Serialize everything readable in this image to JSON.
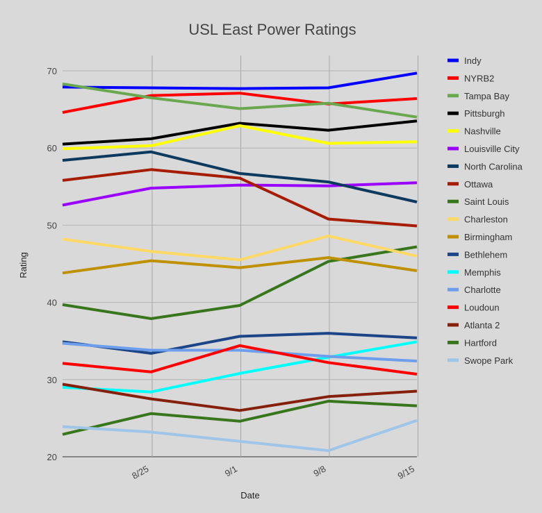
{
  "chart_data": {
    "type": "line",
    "title": "USL East Power Ratings",
    "xlabel": "Date",
    "ylabel": "Rating",
    "ylim": [
      20,
      70
    ],
    "yticks": [
      20,
      30,
      40,
      50,
      60,
      70
    ],
    "xlim": [
      0,
      5
    ],
    "xticks": [
      {
        "label": "8/25",
        "x": 1
      },
      {
        "label": "9/1",
        "x": 2
      },
      {
        "label": "9/8",
        "x": 3
      },
      {
        "label": "9/15",
        "x": 4
      }
    ],
    "x": [
      0,
      1,
      2,
      3,
      4
    ],
    "grid": true,
    "legend_position": "right",
    "series": [
      {
        "name": "Indy",
        "color": "#0000ff",
        "values": [
          67.9,
          67.8,
          67.7,
          67.8,
          69.7
        ]
      },
      {
        "name": "NYRB2",
        "color": "#ff0000",
        "values": [
          64.6,
          66.8,
          67.1,
          65.7,
          66.4
        ]
      },
      {
        "name": "Tampa Bay",
        "color": "#6aa84f",
        "values": [
          68.3,
          66.5,
          65.1,
          65.8,
          64.0
        ]
      },
      {
        "name": "Pittsburgh",
        "color": "#000000",
        "values": [
          60.5,
          61.2,
          63.2,
          62.3,
          63.5
        ]
      },
      {
        "name": "Nashville",
        "color": "#ffff00",
        "values": [
          59.9,
          60.3,
          62.9,
          60.6,
          60.8
        ]
      },
      {
        "name": "Louisville City",
        "color": "#9900ff",
        "values": [
          52.6,
          54.8,
          55.2,
          55.1,
          55.5
        ]
      },
      {
        "name": "North Carolina",
        "color": "#0b3a5e",
        "values": [
          58.4,
          59.5,
          56.7,
          55.6,
          53.0
        ]
      },
      {
        "name": "Ottawa",
        "color": "#a61c00",
        "values": [
          55.8,
          57.2,
          56.1,
          50.8,
          49.9
        ]
      },
      {
        "name": "Saint Louis",
        "color": "#38761d",
        "values": [
          39.7,
          37.9,
          39.6,
          45.3,
          47.2
        ]
      },
      {
        "name": "Charleston",
        "color": "#ffd966",
        "values": [
          48.2,
          46.6,
          45.5,
          48.6,
          46.0
        ]
      },
      {
        "name": "Birmingham",
        "color": "#bf9000",
        "values": [
          43.8,
          45.4,
          44.5,
          45.8,
          44.1
        ]
      },
      {
        "name": "Bethlehem",
        "color": "#1c4587",
        "values": [
          34.9,
          33.4,
          35.6,
          36.0,
          35.4
        ]
      },
      {
        "name": "Memphis",
        "color": "#00ffff",
        "values": [
          29.0,
          28.4,
          30.8,
          32.9,
          34.9
        ]
      },
      {
        "name": "Charlotte",
        "color": "#6d9eeb",
        "values": [
          34.7,
          33.8,
          33.8,
          33.0,
          32.4
        ]
      },
      {
        "name": "Loudoun",
        "color": "#ff0000",
        "values": [
          32.1,
          31.0,
          34.4,
          32.2,
          30.7
        ]
      },
      {
        "name": "Atlanta 2",
        "color": "#85200c",
        "values": [
          29.4,
          27.5,
          26.0,
          27.8,
          28.5
        ]
      },
      {
        "name": "Hartford",
        "color": "#38761d",
        "values": [
          22.9,
          25.6,
          24.6,
          27.2,
          26.6
        ]
      },
      {
        "name": "Swope Park",
        "color": "#9fc5e8",
        "values": [
          23.9,
          23.2,
          22.0,
          20.8,
          24.7
        ]
      }
    ]
  }
}
